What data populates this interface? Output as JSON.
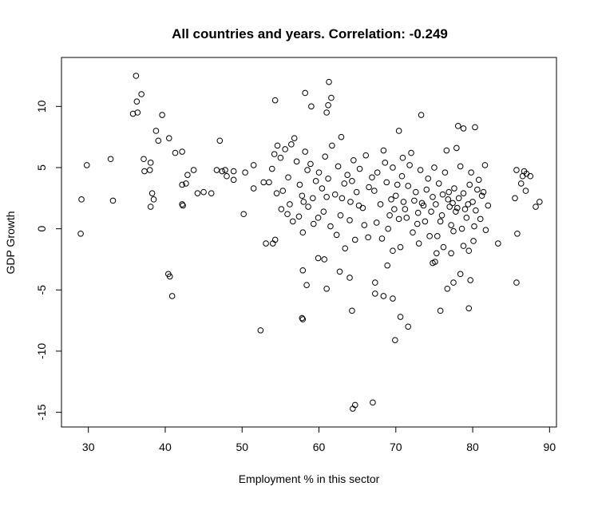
{
  "chart_data": {
    "type": "scatter",
    "title": "All countries and years. Correlation: -0.249",
    "x_label": "Employment % in this sector",
    "y_label": "GDP Growth",
    "color": "#000000",
    "xlim": [
      26.5,
      90.9
    ],
    "ylim": [
      -16.2,
      14.0
    ],
    "xticks": [
      30,
      40,
      50,
      60,
      70,
      80,
      90
    ],
    "yticks": [
      -15,
      -10,
      -5,
      0,
      5,
      10
    ],
    "x": [
      29.0,
      29.1,
      29.8,
      32.9,
      33.2,
      36.2,
      35.8,
      36.3,
      36.9,
      36.4,
      37.2,
      37.3,
      38.0,
      38.1,
      38.3,
      38.5,
      38.1,
      38.8,
      39.1,
      39.6,
      40.5,
      40.4,
      40.6,
      40.9,
      41.3,
      42.2,
      42.2,
      42.2,
      42.3,
      42.7,
      42.9,
      43.7,
      44.2,
      45.0,
      46.0,
      46.7,
      47.1,
      47.4,
      47.8,
      48.0,
      48.9,
      48.9,
      50.2,
      50.4,
      51.5,
      51.5,
      52.4,
      53.1,
      52.8,
      61.3,
      58.2,
      54.3,
      61.6,
      61.2,
      59.0,
      61.0,
      73.3,
      78.1,
      78.8,
      80.3,
      70.4,
      54.0,
      54.3,
      57.8,
      57.9,
      58.4,
      57.9,
      61.0,
      64.3,
      64.4,
      64.7,
      67.0,
      69.9,
      70.6,
      71.6,
      67.3,
      67.3,
      68.4,
      69.6,
      75.8,
      79.5,
      76.7,
      77.5,
      78.4,
      79.7,
      64.0,
      62.7,
      68.9,
      69.6,
      59.9,
      60.7,
      75.3,
      74.8,
      75.1,
      77.2,
      78.8,
      80.1,
      83.3,
      81.7,
      85.7,
      85.8,
      85.7,
      86.7,
      87.0,
      87.5,
      86.3,
      86.9,
      88.2,
      88.7,
      85.5,
      86.5,
      53.5,
      53.9,
      54.2,
      54.6,
      55.0,
      55.3,
      55.6,
      56.0,
      56.4,
      56.8,
      57.1,
      57.5,
      57.8,
      58.2,
      58.5,
      58.9,
      59.2,
      59.6,
      60.0,
      56.2,
      54.5,
      55.1,
      55.9,
      56.6,
      57.4,
      57.9,
      58.6,
      59.3,
      59.9,
      58.0,
      60.4,
      60.8,
      61.2,
      61.7,
      62.1,
      62.5,
      62.9,
      63.3,
      63.7,
      64.1,
      64.5,
      64.9,
      65.3,
      65.7,
      66.1,
      66.5,
      66.9,
      60.6,
      61.5,
      62.3,
      62.8,
      63.4,
      64.0,
      64.7,
      65.2,
      65.9,
      66.4,
      63.0,
      61.0,
      64.3,
      67.2,
      67.6,
      68.0,
      68.4,
      68.8,
      69.2,
      69.6,
      70.0,
      70.4,
      70.8,
      71.2,
      71.6,
      72.0,
      72.4,
      72.8,
      73.2,
      73.6,
      74.0,
      74.4,
      74.8,
      67.5,
      68.2,
      69.0,
      69.8,
      70.6,
      71.4,
      72.2,
      73.0,
      73.8,
      74.6,
      68.6,
      70.2,
      71.8,
      72.6,
      73.4,
      74.2,
      69.4,
      71.0,
      72.9,
      70.9,
      75.2,
      75.6,
      76.0,
      76.4,
      76.8,
      77.2,
      77.6,
      78.0,
      78.4,
      78.8,
      79.2,
      79.6,
      80.0,
      80.4,
      80.8,
      81.2,
      81.6,
      82.0,
      75.4,
      76.2,
      77.0,
      77.4,
      77.8,
      78.2,
      79.0,
      79.4,
      80.2,
      76.6,
      77.9,
      79.8,
      75.8,
      76.9,
      78.6,
      80.6,
      81.0,
      75.0,
      77.5,
      79.5,
      81.4,
      76.1
    ],
    "values": [
      -0.4,
      2.4,
      5.2,
      5.7,
      2.3,
      12.5,
      9.4,
      10.4,
      11.0,
      9.5,
      5.7,
      4.7,
      4.8,
      5.4,
      2.9,
      2.4,
      1.8,
      8.0,
      7.2,
      9.3,
      7.4,
      -3.7,
      -3.9,
      -5.5,
      6.2,
      6.3,
      3.6,
      2.0,
      1.9,
      3.7,
      4.4,
      4.8,
      2.9,
      3.0,
      2.9,
      4.8,
      7.2,
      4.7,
      4.8,
      4.3,
      4.7,
      4.0,
      1.2,
      4.6,
      5.2,
      3.3,
      -8.3,
      -1.2,
      3.8,
      12.0,
      11.1,
      10.5,
      10.7,
      10.1,
      10.0,
      9.5,
      9.3,
      8.4,
      8.2,
      8.3,
      8.0,
      -1.2,
      -0.9,
      -7.3,
      -7.4,
      -4.6,
      -3.4,
      -4.9,
      -6.7,
      -14.7,
      -14.4,
      -14.2,
      -9.1,
      -7.2,
      -8.0,
      -4.4,
      -5.3,
      -5.5,
      -5.7,
      -6.7,
      -6.5,
      -4.9,
      -4.4,
      -3.7,
      -4.2,
      -4.0,
      -3.5,
      -3.0,
      -1.8,
      -2.4,
      -2.5,
      -2.0,
      -2.8,
      -2.7,
      -2.0,
      -1.4,
      -1.0,
      -1.2,
      -0.1,
      -4.4,
      -0.4,
      4.8,
      4.7,
      4.5,
      4.3,
      3.7,
      3.1,
      1.8,
      2.2,
      2.5,
      4.3,
      3.8,
      4.9,
      6.1,
      6.8,
      5.8,
      3.1,
      6.5,
      4.2,
      6.9,
      7.4,
      5.5,
      3.6,
      2.7,
      6.3,
      4.8,
      5.3,
      2.5,
      3.9,
      4.6,
      2.0,
      2.9,
      1.6,
      1.2,
      0.6,
      1.0,
      -0.3,
      1.8,
      0.4,
      0.9,
      2.2,
      3.3,
      5.9,
      4.1,
      6.8,
      2.8,
      5.1,
      7.5,
      3.7,
      4.4,
      2.2,
      5.6,
      3.0,
      4.9,
      1.7,
      6.0,
      3.4,
      4.2,
      1.4,
      0.2,
      -0.5,
      1.1,
      -1.6,
      0.7,
      -0.9,
      1.9,
      0.3,
      -0.7,
      2.5,
      2.6,
      3.9,
      3.1,
      4.6,
      2.0,
      6.4,
      3.8,
      1.1,
      5.0,
      2.7,
      0.8,
      4.3,
      1.6,
      3.5,
      6.2,
      2.3,
      0.4,
      4.8,
      1.9,
      3.2,
      -0.6,
      2.6,
      0.5,
      -0.8,
      0.0,
      1.6,
      -1.5,
      0.9,
      -0.3,
      -1.2,
      0.6,
      1.4,
      5.4,
      3.6,
      5.2,
      3.0,
      2.1,
      4.1,
      2.4,
      2.2,
      1.3,
      5.8,
      2.0,
      3.7,
      1.1,
      4.6,
      2.4,
      0.3,
      3.3,
      1.7,
      5.1,
      2.9,
      0.9,
      3.6,
      2.2,
      1.5,
      4.0,
      2.7,
      5.2,
      1.9,
      -0.6,
      -1.5,
      1.8,
      2.1,
      1.4,
      2.5,
      1.6,
      2.0,
      0.2,
      6.4,
      6.6,
      4.6,
      0.6,
      3.0,
      0.0,
      3.2,
      0.8,
      5.0,
      -0.2,
      -1.8,
      3.0,
      2.8
    ]
  }
}
